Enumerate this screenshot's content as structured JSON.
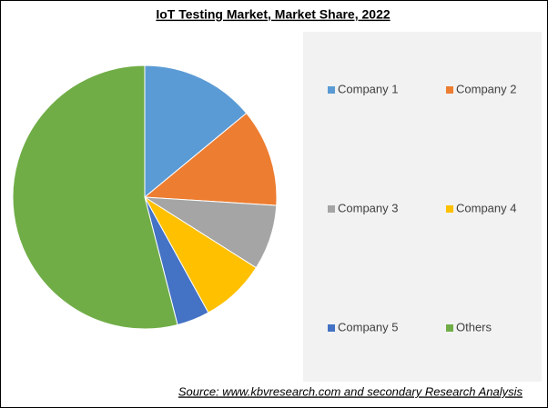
{
  "chart_data": {
    "type": "pie",
    "title": "IoT Testing Market, Market Share, 2022",
    "categories": [
      "Company 1",
      "Company 2",
      "Company 3",
      "Company 4",
      "Company 5",
      "Others"
    ],
    "values": [
      14,
      12,
      8,
      8,
      4,
      54
    ],
    "colors": [
      "#5b9bd5",
      "#ed7d31",
      "#a5a5a5",
      "#ffc000",
      "#4472c4",
      "#70ad47"
    ],
    "source": "Source: www.kbvresearch.com and secondary Research Analysis"
  }
}
